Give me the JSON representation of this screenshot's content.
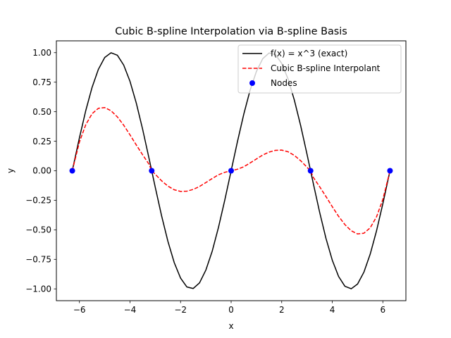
{
  "chart_data": {
    "type": "line",
    "title": "Cubic B-spline Interpolation via B-spline Basis",
    "xlabel": "x",
    "ylabel": "y",
    "xlim": [
      -6.912,
      6.912
    ],
    "ylim": [
      -1.1,
      1.1
    ],
    "x_ticks": [
      -6,
      -4,
      -2,
      0,
      2,
      4,
      6
    ],
    "x_tick_labels": [
      "−6",
      "−4",
      "−2",
      "0",
      "2",
      "4",
      "6"
    ],
    "y_ticks": [
      -1.0,
      -0.75,
      -0.5,
      -0.25,
      0.0,
      0.25,
      0.5,
      0.75,
      1.0
    ],
    "y_tick_labels": [
      "−1.00",
      "−0.75",
      "−0.50",
      "−0.25",
      "0.00",
      "0.25",
      "0.50",
      "0.75",
      "1.00"
    ],
    "grid": false,
    "legend_position": "upper-right",
    "series": [
      {
        "name": "f(x) = x^3 (exact)",
        "style": "solid",
        "color": "#000000",
        "x": [
          -6.2832,
          -6.0,
          -5.75,
          -5.5,
          -5.25,
          -5.0,
          -4.75,
          -4.5,
          -4.25,
          -4.0,
          -3.75,
          -3.5,
          -3.25,
          -3.0,
          -2.75,
          -2.5,
          -2.25,
          -2.0,
          -1.75,
          -1.5,
          -1.25,
          -1.0,
          -0.75,
          -0.5,
          -0.25,
          0.0,
          0.25,
          0.5,
          0.75,
          1.0,
          1.25,
          1.5,
          1.75,
          2.0,
          2.25,
          2.5,
          2.75,
          3.0,
          3.25,
          3.5,
          3.75,
          4.0,
          4.25,
          4.5,
          4.75,
          5.0,
          5.25,
          5.5,
          5.75,
          6.0,
          6.2832
        ],
        "y": [
          0.0,
          0.279,
          0.509,
          0.706,
          0.859,
          0.959,
          0.999,
          0.978,
          0.895,
          0.757,
          0.572,
          0.351,
          0.108,
          -0.141,
          -0.382,
          -0.598,
          -0.778,
          -0.909,
          -0.984,
          -0.997,
          -0.949,
          -0.841,
          -0.682,
          -0.479,
          -0.247,
          0.0,
          0.247,
          0.479,
          0.682,
          0.841,
          0.949,
          0.997,
          0.984,
          0.909,
          0.778,
          0.598,
          0.382,
          0.141,
          -0.108,
          -0.351,
          -0.572,
          -0.757,
          -0.895,
          -0.978,
          -0.999,
          -0.959,
          -0.859,
          -0.706,
          -0.509,
          -0.279,
          0.0
        ]
      },
      {
        "name": "Cubic B-spline Interpolant",
        "style": "dashed",
        "color": "#ff0000",
        "x": [
          -6.2832,
          -6.0,
          -5.75,
          -5.5,
          -5.25,
          -5.0,
          -4.75,
          -4.5,
          -4.25,
          -4.0,
          -3.75,
          -3.5,
          -3.25,
          -3.1416,
          -3.0,
          -2.75,
          -2.5,
          -2.25,
          -2.0,
          -1.75,
          -1.5,
          -1.25,
          -1.0,
          -0.75,
          -0.5,
          -0.25,
          0.0,
          0.25,
          0.5,
          0.75,
          1.0,
          1.25,
          1.5,
          1.75,
          2.0,
          2.25,
          2.5,
          2.75,
          3.0,
          3.1416,
          3.25,
          3.5,
          3.75,
          4.0,
          4.25,
          4.5,
          4.75,
          5.0,
          5.25,
          5.5,
          5.75,
          6.0,
          6.2832
        ],
        "y": [
          0.0,
          0.243,
          0.39,
          0.483,
          0.529,
          0.535,
          0.508,
          0.456,
          0.386,
          0.304,
          0.218,
          0.135,
          0.056,
          0.0,
          -0.03,
          -0.085,
          -0.13,
          -0.161,
          -0.175,
          -0.173,
          -0.158,
          -0.133,
          -0.1,
          -0.066,
          -0.034,
          -0.013,
          0.0,
          0.013,
          0.034,
          0.066,
          0.1,
          0.133,
          0.158,
          0.173,
          0.175,
          0.161,
          0.13,
          0.085,
          0.03,
          0.0,
          -0.056,
          -0.135,
          -0.218,
          -0.304,
          -0.386,
          -0.456,
          -0.508,
          -0.535,
          -0.529,
          -0.483,
          -0.39,
          -0.243,
          0.0
        ]
      },
      {
        "name": "Nodes",
        "style": "markers",
        "color": "#0000ff",
        "x": [
          -6.2832,
          -3.1416,
          0.0,
          3.1416,
          6.2832
        ],
        "y": [
          0.0,
          0.0,
          0.0,
          0.0,
          0.0
        ]
      }
    ]
  }
}
